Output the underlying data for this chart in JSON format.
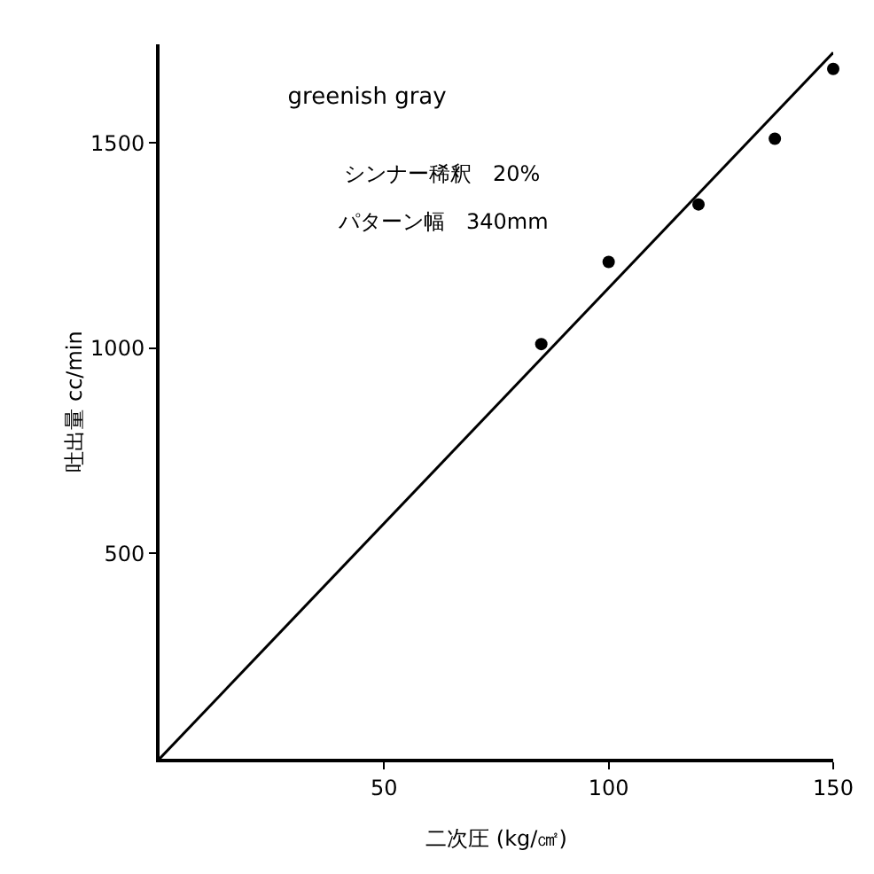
{
  "chart_data": {
    "type": "scatter",
    "title": "greenish gray",
    "xlabel": "二次圧 (kg/㎠)",
    "ylabel": "吐出量 cc/min",
    "annotations": [
      "シンナー稀釈　20%",
      "パターン幅　340mm"
    ],
    "x": [
      85,
      100,
      120,
      137,
      150
    ],
    "series": [
      {
        "color": "#000000",
        "values": [
          1010,
          1210,
          1350,
          1510,
          1680
        ],
        "marker": "circle"
      },
      {
        "type": "line",
        "color": "#000000",
        "x": [
          0,
          150
        ],
        "values": [
          0,
          1720
        ],
        "marker": "none"
      }
    ],
    "xlim": [
      0,
      150
    ],
    "xticks": [
      50,
      100,
      150
    ],
    "ylim": [
      0,
      1740
    ],
    "yticks": [
      500,
      1000,
      1500
    ],
    "grid": false
  }
}
